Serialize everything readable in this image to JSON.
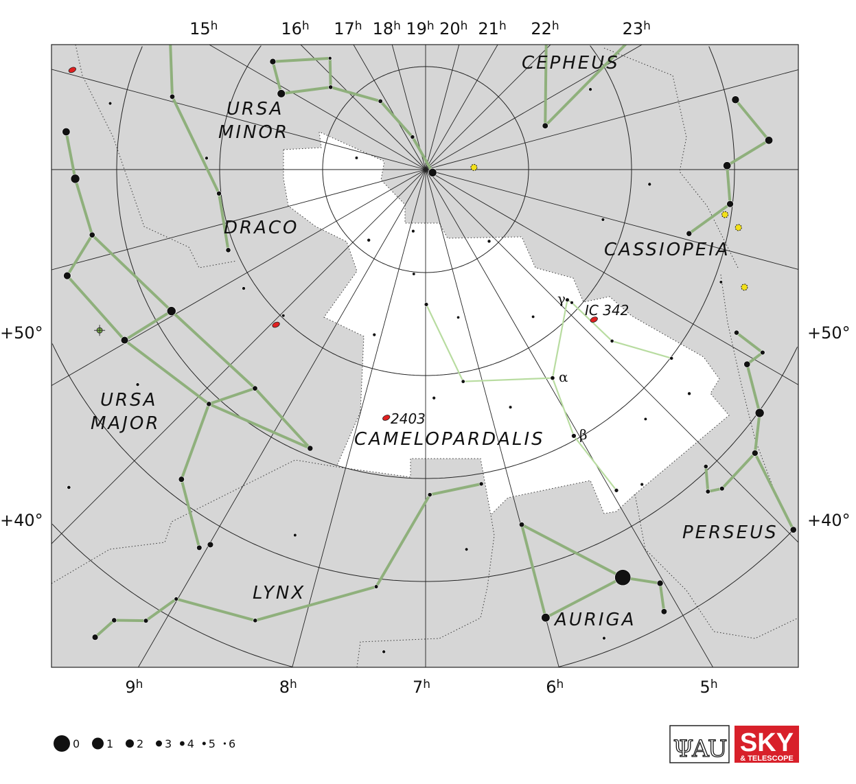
{
  "chart_data": {
    "type": "star-map",
    "projection": "polar, north celestial pole",
    "ra_labels": [
      "15h",
      "16h",
      "17h",
      "18h",
      "19h",
      "20h",
      "21h",
      "22h",
      "23h",
      "9h",
      "8h",
      "7h",
      "6h",
      "5h"
    ],
    "ra_top": [
      15,
      16,
      17,
      18,
      19,
      20,
      21,
      22,
      23
    ],
    "ra_bottom": [
      9,
      8,
      7,
      6,
      5
    ],
    "dec_labels": [
      "+50°",
      "+40°"
    ],
    "dec_circles": [
      80,
      70,
      60,
      50,
      40
    ],
    "colors": {
      "background": "#d6d6d6",
      "constellation_area": "#ffffff",
      "main_lines": "#8fb07c",
      "camelopardalis_lines": "#b8dca0",
      "stars": "#111111",
      "galaxy": "#e02020",
      "variable": "#f2e01a",
      "nebula": "#7ab648"
    },
    "constellations": [
      "CEPHEUS",
      "URSA",
      "MINOR",
      "DRACO",
      "CASSIOPEIA",
      "CAMELOPARDALIS",
      "URSA",
      "MAJOR",
      "LYNX",
      "PERSEUS",
      "AURIGA"
    ],
    "stars": [
      {
        "id": "polaris",
        "ra": 2.53,
        "dec": 89.26,
        "mag": 2.0
      },
      {
        "id": "dubhe",
        "ra": 11.06,
        "dec": 61.75,
        "mag": 1.8
      },
      {
        "id": "merak",
        "ra": 11.03,
        "dec": 56.4,
        "mag": 2.4
      },
      {
        "id": "phecda",
        "ra": 11.9,
        "dec": 53.7,
        "mag": 2.4
      },
      {
        "id": "megrez",
        "ra": 12.26,
        "dec": 57.0,
        "mag": 3.3
      },
      {
        "id": "alioth",
        "ra": 12.9,
        "dec": 55.96,
        "mag": 1.8
      },
      {
        "id": "mizar",
        "ra": 13.4,
        "dec": 54.9,
        "mag": 2.2
      },
      {
        "id": "23uma",
        "ra": 9.53,
        "dec": 63.06,
        "mag": 3.7
      },
      {
        "id": "omiuma",
        "ra": 8.5,
        "dec": 60.7,
        "mag": 3.4
      },
      {
        "id": "upsuma",
        "ra": 9.85,
        "dec": 59.0,
        "mag": 3.8
      },
      {
        "id": "thetauma",
        "ra": 9.55,
        "dec": 51.7,
        "mag": 3.2
      },
      {
        "id": "kapuma",
        "ra": 9.06,
        "dec": 47.2,
        "mag": 3.6
      },
      {
        "id": "iotauma",
        "ra": 8.99,
        "dec": 48.0,
        "mag": 3.1
      },
      {
        "id": "thuban",
        "ra": 14.07,
        "dec": 64.4,
        "mag": 3.7
      },
      {
        "id": "iotadra",
        "ra": 15.42,
        "dec": 58.97,
        "mag": 3.3
      },
      {
        "id": "kapdra",
        "ra": 12.56,
        "dec": 69.8,
        "mag": 3.9
      },
      {
        "id": "lamdra",
        "ra": 11.52,
        "dec": 69.3,
        "mag": 3.8
      },
      {
        "id": "kochab",
        "ra": 14.85,
        "dec": 74.16,
        "mag": 2.1
      },
      {
        "id": "gamumi",
        "ra": 15.35,
        "dec": 71.83,
        "mag": 3.0
      },
      {
        "id": "etaumi",
        "ra": 16.29,
        "dec": 75.75,
        "mag": 5.0
      },
      {
        "id": "zetumi",
        "ra": 15.73,
        "dec": 77.79,
        "mag": 4.3
      },
      {
        "id": "epsumi",
        "ra": 16.77,
        "dec": 82.04,
        "mag": 4.2
      },
      {
        "id": "delumi",
        "ra": 17.54,
        "dec": 86.59,
        "mag": 4.4
      },
      {
        "id": "gamcep",
        "ra": 23.66,
        "dec": 77.63,
        "mag": 3.2
      },
      {
        "id": "iotacep",
        "ra": 22.83,
        "dec": 66.2,
        "mag": 3.5
      },
      {
        "id": "betcep",
        "ra": 21.48,
        "dec": 70.56,
        "mag": 3.2
      },
      {
        "id": "schedar",
        "ra": 0.675,
        "dec": 56.54,
        "mag": 2.2
      },
      {
        "id": "caph",
        "ra": 0.153,
        "dec": 59.15,
        "mag": 2.3
      },
      {
        "id": "gamcas",
        "ra": 0.95,
        "dec": 60.72,
        "mag": 2.2
      },
      {
        "id": "ruchbah",
        "ra": 1.43,
        "dec": 60.24,
        "mag": 2.7
      },
      {
        "id": "segin",
        "ra": 1.91,
        "dec": 63.67,
        "mag": 3.4
      },
      {
        "id": "mirfak",
        "ra": 3.405,
        "dec": 49.86,
        "mag": 1.8
      },
      {
        "id": "gamper",
        "ra": 3.08,
        "dec": 53.5,
        "mag": 2.9
      },
      {
        "id": "delper",
        "ra": 3.715,
        "dec": 47.79,
        "mag": 3.0
      },
      {
        "id": "epsper",
        "ra": 3.96,
        "dec": 40.01,
        "mag": 2.9
      },
      {
        "id": "etaper",
        "ra": 2.845,
        "dec": 55.9,
        "mag": 3.8
      },
      {
        "id": "tauper",
        "ra": 2.9,
        "dec": 52.76,
        "mag": 4.0
      },
      {
        "id": "muper",
        "ra": 4.25,
        "dec": 48.41,
        "mag": 4.1
      },
      {
        "id": "lamper",
        "ra": 4.11,
        "dec": 50.35,
        "mag": 4.3
      },
      {
        "id": "48per",
        "ra": 4.14,
        "dec": 47.71,
        "mag": 4.0
      },
      {
        "id": "capella",
        "ra": 5.28,
        "dec": 46.0,
        "mag": 0.1
      },
      {
        "id": "menkalinan",
        "ra": 6.0,
        "dec": 44.95,
        "mag": 1.9
      },
      {
        "id": "delaur",
        "ra": 5.99,
        "dec": 54.28,
        "mag": 3.7
      },
      {
        "id": "epsaur",
        "ra": 5.03,
        "dec": 43.82,
        "mag": 3.0
      },
      {
        "id": "etaaur",
        "ra": 5.11,
        "dec": 41.23,
        "mag": 3.2
      },
      {
        "id": "alplyn",
        "ra": 9.35,
        "dec": 34.39,
        "mag": 3.1
      },
      {
        "id": "38lyn",
        "ra": 9.31,
        "dec": 36.8,
        "mag": 3.8
      },
      {
        "id": "10uma",
        "ra": 9.12,
        "dec": 38.45,
        "mag": 4.0
      },
      {
        "id": "lyn902",
        "ra": 9.01,
        "dec": 41.78,
        "mag": 4.5
      },
      {
        "id": "31lyn",
        "ra": 8.38,
        "dec": 43.19,
        "mag": 4.3
      },
      {
        "id": "21lyn",
        "ra": 7.45,
        "dec": 49.21,
        "mag": 4.6
      },
      {
        "id": "15lyn",
        "ra": 6.95,
        "dec": 58.42,
        "mag": 4.3
      },
      {
        "id": "2lyn",
        "ra": 6.33,
        "dec": 59.0,
        "mag": 4.4
      },
      {
        "id": "alpcam",
        "ra": 4.91,
        "dec": 66.3,
        "mag": 4.3
      },
      {
        "id": "betcam",
        "ra": 5.06,
        "dec": 60.4,
        "mag": 4.0
      },
      {
        "id": "gamcam",
        "ra": 3.84,
        "dec": 71.3,
        "mag": 4.6
      },
      {
        "id": "7cam",
        "ra": 4.95,
        "dec": 53.75,
        "mag": 4.5
      },
      {
        "id": "cam1",
        "ra": 6.98,
        "dec": 76.9,
        "mag": 4.6
      },
      {
        "id": "cam2",
        "ra": 6.33,
        "dec": 69.1,
        "mag": 4.8
      },
      {
        "id": "cam3",
        "ra": 3.82,
        "dec": 70.8,
        "mag": 5.2
      },
      {
        "id": "cam4",
        "ra": 3.84,
        "dec": 65.4,
        "mag": 4.9
      },
      {
        "id": "cam5",
        "ra": 3.5,
        "dec": 59.9,
        "mag": 4.9
      },
      {
        "ra": 9.59,
        "dec": 81.2,
        "mag": 5.0
      },
      {
        "ra": 7.76,
        "dec": 83.9,
        "mag": 5.2
      },
      {
        "ra": 4.23,
        "dec": 80.7,
        "mag": 5.0
      },
      {
        "ra": 7.43,
        "dec": 79.8,
        "mag": 5.3
      },
      {
        "ra": 8.15,
        "dec": 73.2,
        "mag": 5.1
      },
      {
        "ra": 6.17,
        "dec": 75.3,
        "mag": 5.4
      },
      {
        "ra": 4.59,
        "dec": 72.3,
        "mag": 5.3
      },
      {
        "ra": 6.86,
        "dec": 67.8,
        "mag": 5.1
      },
      {
        "ra": 5.69,
        "dec": 65.5,
        "mag": 5.2
      },
      {
        "ra": 4.24,
        "dec": 57.7,
        "mag": 5.3
      },
      {
        "ra": 3.69,
        "dec": 56.4,
        "mag": 5.0
      },
      {
        "ra": 4.7,
        "dec": 52.9,
        "mag": 5.1
      },
      {
        "ra": 9.95,
        "dec": 70.2,
        "mag": 5.2
      },
      {
        "ra": 10.79,
        "dec": 68.9,
        "mag": 5.0
      },
      {
        "ra": 2.05,
        "dec": 72.1,
        "mag": 5.1
      },
      {
        "ra": 1.25,
        "dec": 68.2,
        "mag": 5.0
      },
      {
        "ra": 13.64,
        "dec": 83.2,
        "mag": 5.3
      },
      {
        "ra": 10.55,
        "dec": 55.1,
        "mag": 5.0
      },
      {
        "ra": 8.31,
        "dec": 52.3,
        "mag": 5.2
      },
      {
        "ra": 6.59,
        "dec": 52.9,
        "mag": 5.1
      },
      {
        "ra": 2.39,
        "dec": 59.3,
        "mag": 5.2
      },
      {
        "ra": 13.2,
        "dec": 68.7,
        "mag": 5.0
      },
      {
        "ra": 13.79,
        "dec": 58.7,
        "mag": 5.1
      },
      {
        "ra": 23.27,
        "dec": 72.2,
        "mag": 5.0
      },
      {
        "ra": 10.22,
        "dec": 43.6,
        "mag": 4.8
      },
      {
        "ra": 7.33,
        "dec": 43.0,
        "mag": 5.0
      },
      {
        "ra": 5.61,
        "dec": 41.3,
        "mag": 5.1
      }
    ],
    "main_lines": [
      [
        "dubhe",
        "merak"
      ],
      [
        "merak",
        "phecda"
      ],
      [
        "phecda",
        "megrez"
      ],
      [
        "megrez",
        "dubhe"
      ],
      [
        "megrez",
        "alioth"
      ],
      [
        "alioth",
        "mizar"
      ],
      [
        "dubhe",
        "23uma"
      ],
      [
        "23uma",
        "omiuma"
      ],
      [
        "merak",
        "upsuma"
      ],
      [
        "upsuma",
        "omiuma"
      ],
      [
        "upsuma",
        "23uma"
      ],
      [
        "upsuma",
        "thetauma"
      ],
      [
        "thetauma",
        "kapuma"
      ],
      [
        "iotadra",
        "thuban"
      ],
      [
        "thuban",
        "kapdra"
      ],
      [
        "kapdra",
        "lamdra"
      ],
      [
        "gamumi",
        "etaumi"
      ],
      [
        "etaumi",
        "zetumi"
      ],
      [
        "zetumi",
        "kochab"
      ],
      [
        "kochab",
        "gamumi"
      ],
      [
        "zetumi",
        "epsumi"
      ],
      [
        "epsumi",
        "delumi"
      ],
      [
        "delumi",
        "polaris"
      ],
      [
        "gamcep",
        "iotacep"
      ],
      [
        "gamcep",
        "betcep"
      ],
      [
        "caph",
        "schedar"
      ],
      [
        "schedar",
        "gamcas"
      ],
      [
        "gamcas",
        "ruchbah"
      ],
      [
        "ruchbah",
        "segin"
      ],
      [
        "etaper",
        "tauper"
      ],
      [
        "tauper",
        "gamper"
      ],
      [
        "gamper",
        "mirfak"
      ],
      [
        "mirfak",
        "delper"
      ],
      [
        "delper",
        "epsper"
      ],
      [
        "delper",
        "48per"
      ],
      [
        "48per",
        "muper"
      ],
      [
        "muper",
        "lamper"
      ],
      [
        "delaur",
        "capella"
      ],
      [
        "capella",
        "menkalinan"
      ],
      [
        "delaur",
        "menkalinan"
      ],
      [
        "capella",
        "epsaur"
      ],
      [
        "epsaur",
        "etaaur"
      ],
      [
        "alplyn",
        "38lyn"
      ],
      [
        "38lyn",
        "10uma"
      ],
      [
        "10uma",
        "lyn902"
      ],
      [
        "lyn902",
        "31lyn"
      ],
      [
        "31lyn",
        "21lyn"
      ],
      [
        "21lyn",
        "15lyn"
      ],
      [
        "15lyn",
        "2lyn"
      ]
    ],
    "camelopardalis_lines": [
      [
        "cam1",
        "cam2"
      ],
      [
        "cam2",
        "alpcam"
      ],
      [
        "alpcam",
        "gamcam"
      ],
      [
        "alpcam",
        "betcam"
      ],
      [
        "betcam",
        "7cam"
      ],
      [
        "gamcam",
        "cam3"
      ],
      [
        "cam3",
        "cam4"
      ],
      [
        "cam4",
        "cam5"
      ]
    ],
    "deep_sky": [
      {
        "label": "IC 342",
        "ra": 3.78,
        "dec": 68.1,
        "kind": "galaxy"
      },
      {
        "label": "2403",
        "ra": 7.6,
        "dec": 65.6,
        "kind": "galaxy"
      },
      {
        "label": "",
        "ra": 9.93,
        "dec": 69.07,
        "kind": "galaxy"
      },
      {
        "label": "",
        "ra": 14.05,
        "dec": 54.35,
        "kind": "galaxy"
      },
      {
        "label": "",
        "ra": 11.25,
        "dec": 54.7,
        "kind": "nebula"
      }
    ],
    "variables": [
      {
        "ra": 0.83,
        "dec": 85.3
      },
      {
        "ra": 1.57,
        "dec": 60.6
      },
      {
        "ra": 2.35,
        "dec": 57.0
      },
      {
        "ra": 1.7,
        "dec": 59.1
      }
    ],
    "greek_labels": {
      "alpha": "α",
      "beta": "β",
      "gamma": "γ"
    },
    "magnitude_legend": [
      "0",
      "1",
      "2",
      "3",
      "4",
      "5",
      "6"
    ]
  },
  "labels": {
    "cepheus": "CEPHEUS",
    "ursa_minor_1": "URSA",
    "ursa_minor_2": "MINOR",
    "draco": "DRACO",
    "cassiopeia": "CASSIOPEIA",
    "camelopardalis": "CAMELOPARDALIS",
    "ursa_major_1": "URSA",
    "ursa_major_2": "MAJOR",
    "lynx": "LYNX",
    "perseus": "PERSEUS",
    "auriga": "AURIGA",
    "ic342": "IC 342",
    "ngc2403": "2403",
    "dec50": "+50°",
    "dec40": "+40°"
  },
  "logos": {
    "iau": "IAU",
    "sky": "SKY",
    "sky_sub": "& TELESCOPE"
  }
}
